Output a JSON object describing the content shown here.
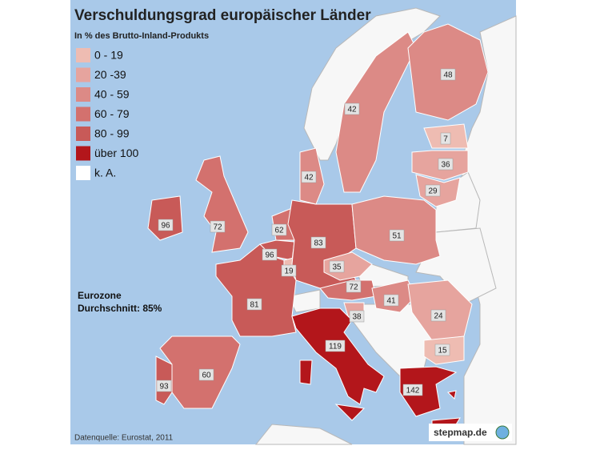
{
  "header": {
    "title": "Verschuldungsgrad europäischer Länder",
    "subtitle": "In % des Brutto-Inland-Produkts"
  },
  "legend": [
    {
      "label": "0 - 19",
      "color": "#eebcb2"
    },
    {
      "label": "20 -39",
      "color": "#e6a49e"
    },
    {
      "label": "40 - 59",
      "color": "#dc8a86"
    },
    {
      "label": "60 - 79",
      "color": "#d3716e"
    },
    {
      "label": "80 - 99",
      "color": "#c85a58"
    },
    {
      "label": "über 100",
      "color": "#b3161b"
    },
    {
      "label": "k. A.",
      "color": "#ffffff"
    }
  ],
  "regions": [
    {
      "value": 96,
      "color": "#c85a58"
    },
    {
      "value": 72,
      "color": "#d3716e"
    },
    {
      "value": 81,
      "color": "#c85a58"
    },
    {
      "value": 60,
      "color": "#d3716e"
    },
    {
      "value": 93,
      "color": "#c85a58"
    },
    {
      "value": 96,
      "color": "#c85a58"
    },
    {
      "value": 62,
      "color": "#d3716e"
    },
    {
      "value": 19,
      "color": "#eebcb2"
    },
    {
      "value": 83,
      "color": "#c85a58"
    },
    {
      "value": 42,
      "color": "#dc8a86"
    },
    {
      "value": 42,
      "color": "#dc8a86"
    },
    {
      "value": 48,
      "color": "#dc8a86"
    },
    {
      "value": 7,
      "color": "#eebcb2"
    },
    {
      "value": 36,
      "color": "#e6a49e"
    },
    {
      "value": 29,
      "color": "#e6a49e"
    },
    {
      "value": 51,
      "color": "#dc8a86"
    },
    {
      "value": 35,
      "color": "#e6a49e"
    },
    {
      "value": 72,
      "color": "#d3716e"
    },
    {
      "value": 41,
      "color": "#dc8a86"
    },
    {
      "value": 38,
      "color": "#e6a49e"
    },
    {
      "value": 24,
      "color": "#e6a49e"
    },
    {
      "value": 15,
      "color": "#eebcb2"
    },
    {
      "value": 119,
      "color": "#b3161b"
    },
    {
      "value": 142,
      "color": "#b3161b"
    }
  ],
  "note": {
    "line1": "Eurozone",
    "line2": "Durchschnitt: 85%"
  },
  "source": "Datenquelle: Eurostat, 2011",
  "logo": "stepmap.de"
}
